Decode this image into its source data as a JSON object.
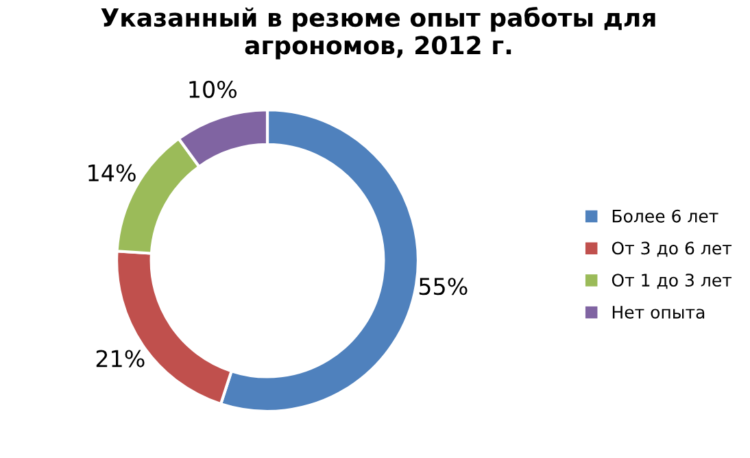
{
  "chart_data": {
    "type": "donut",
    "title": "Указанный в резюме опыт работы для\nагрономов, 2012 г.",
    "categories": [
      "Более 6 лет",
      "От 3 до 6 лет",
      "От 1 до 3 лет",
      "Нет опыта"
    ],
    "values": [
      55,
      21,
      14,
      10
    ],
    "colors": [
      "#4f81bd",
      "#c0504d",
      "#9bbb59",
      "#8064a2"
    ],
    "value_labels": [
      "55%",
      "21%",
      "14%",
      "10%"
    ],
    "legend": "right"
  }
}
